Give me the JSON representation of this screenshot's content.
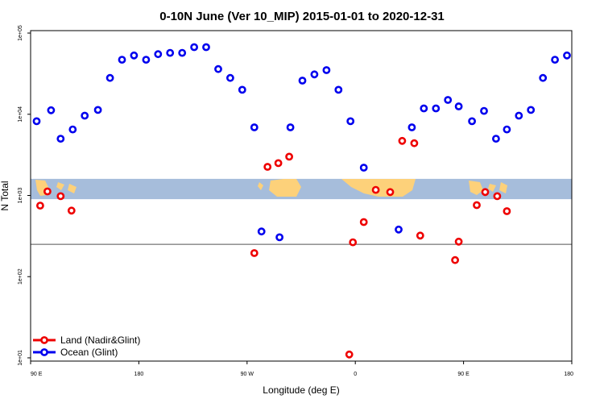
{
  "chart_data": {
    "type": "scatter",
    "title": "0-10N June (Ver 10_MIP)   2015-01-01 to 2020-12-31",
    "xlabel": "Longitude (deg E)",
    "ylabel": "N Total",
    "x_ticks": [
      {
        "value": 90,
        "label": "90 E"
      },
      {
        "value": 180,
        "label": "180"
      },
      {
        "value": 270,
        "label": "90 W"
      },
      {
        "value": 360,
        "label": "0"
      },
      {
        "value": 450,
        "label": "90 E"
      },
      {
        "value": 540,
        "label": "180"
      }
    ],
    "y_ticks": [
      {
        "value": 10,
        "label": "1e+01"
      },
      {
        "value": 100,
        "label": "1e+02"
      },
      {
        "value": 1000,
        "label": "1e+03"
      },
      {
        "value": 10000,
        "label": "1e+04"
      },
      {
        "value": 100000,
        "label": "1e+05"
      }
    ],
    "xlim": [
      90,
      540
    ],
    "ylim_log10": [
      0.96,
      5.03
    ],
    "y_scale": "log",
    "reference_line_y": 250,
    "map_band_y_range": [
      900,
      1600
    ],
    "map_band_color": "#a6bddb",
    "land_color": "#fdd17a",
    "legend_position": "bottom-left",
    "series": [
      {
        "name": "Land (Nadir&Glint)",
        "color": "#ee0000",
        "points": [
          [
            98,
            750
          ],
          [
            104,
            1120
          ],
          [
            115,
            980
          ],
          [
            124,
            650
          ],
          [
            276,
            195
          ],
          [
            287,
            2250
          ],
          [
            296,
            2500
          ],
          [
            305,
            3000
          ],
          [
            355,
            11
          ],
          [
            358,
            265
          ],
          [
            367,
            470
          ],
          [
            377,
            1170
          ],
          [
            389,
            1100
          ],
          [
            399,
            4700
          ],
          [
            409,
            4400
          ],
          [
            414,
            320
          ],
          [
            443,
            160
          ],
          [
            446,
            270
          ],
          [
            461,
            760
          ],
          [
            468,
            1100
          ],
          [
            478,
            980
          ],
          [
            486,
            640
          ]
        ]
      },
      {
        "name": "Ocean (Glint)",
        "color": "#0000ee",
        "points": [
          [
            95,
            8200
          ],
          [
            107,
            11200
          ],
          [
            115,
            5000
          ],
          [
            125,
            6500
          ],
          [
            135,
            9600
          ],
          [
            146,
            11300
          ],
          [
            156,
            28000
          ],
          [
            166,
            47000
          ],
          [
            176,
            53000
          ],
          [
            186,
            47000
          ],
          [
            196,
            55000
          ],
          [
            206,
            57000
          ],
          [
            216,
            57000
          ],
          [
            226,
            67000
          ],
          [
            236,
            67000
          ],
          [
            246,
            36000
          ],
          [
            256,
            28000
          ],
          [
            266,
            20000
          ],
          [
            276,
            6900
          ],
          [
            282,
            360
          ],
          [
            297,
            305
          ],
          [
            306,
            6900
          ],
          [
            316,
            26000
          ],
          [
            326,
            31000
          ],
          [
            336,
            35000
          ],
          [
            346,
            20000
          ],
          [
            356,
            8200
          ],
          [
            367,
            2200
          ],
          [
            396,
            380
          ],
          [
            407,
            6900
          ],
          [
            417,
            11800
          ],
          [
            427,
            11800
          ],
          [
            437,
            15000
          ],
          [
            446,
            12500
          ],
          [
            457,
            8200
          ],
          [
            467,
            11000
          ],
          [
            477,
            5000
          ],
          [
            486,
            6500
          ],
          [
            496,
            9600
          ],
          [
            506,
            11300
          ],
          [
            516,
            28000
          ],
          [
            526,
            47000
          ],
          [
            536,
            53000
          ]
        ]
      }
    ]
  }
}
